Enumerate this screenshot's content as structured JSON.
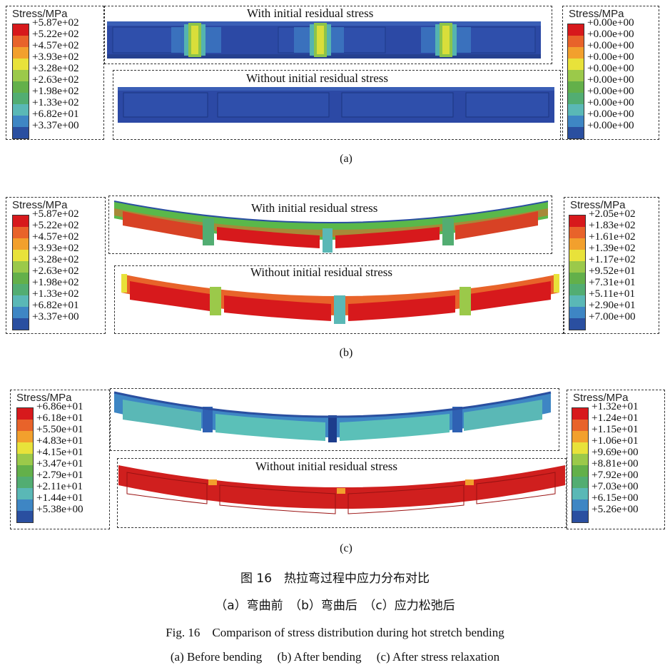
{
  "colors": {
    "scale_top_to_bottom": [
      "#d7191c",
      "#e8632a",
      "#f2a02d",
      "#e8e23a",
      "#9bc94a",
      "#63b04a",
      "#52ad72",
      "#5ab8b6",
      "#3e86c4",
      "#2a4fa0"
    ],
    "beam_blue": "#2c49a5",
    "beam_red": "#d01f1e",
    "beam_teal": "#5bc0b8"
  },
  "panel_a": {
    "label": "(a)",
    "title_top": "With initial residual stress",
    "title_bottom": "Without initial residual stress",
    "legend_left": {
      "title": "Stress/MPa",
      "values": [
        "+5.87e+02",
        "+5.22e+02",
        "+4.57e+02",
        "+3.93e+02",
        "+3.28e+02",
        "+2.63e+02",
        "+1.98e+02",
        "+1.33e+02",
        "+6.82e+01",
        "+3.37e+00"
      ]
    },
    "legend_right": {
      "title": "Stress/MPa",
      "values": [
        "+0.00e+00",
        "+0.00e+00",
        "+0.00e+00",
        "+0.00e+00",
        "+0.00e+00",
        "+0.00e+00",
        "+0.00e+00",
        "+0.00e+00",
        "+0.00e+00",
        "+0.00e+00"
      ]
    }
  },
  "panel_b": {
    "label": "(b)",
    "title_top": "With initial residual stress",
    "title_bottom": "Without initial residual stress",
    "legend_left": {
      "title": "Stress/MPa",
      "values": [
        "+5.87e+02",
        "+5.22e+02",
        "+4.57e+02",
        "+3.93e+02",
        "+3.28e+02",
        "+2.63e+02",
        "+1.98e+02",
        "+1.33e+02",
        "+6.82e+01",
        "+3.37e+00"
      ]
    },
    "legend_right": {
      "title": "Stress/MPa",
      "values": [
        "+2.05e+02",
        "+1.83e+02",
        "+1.61e+02",
        "+1.39e+02",
        "+1.17e+02",
        "+9.52e+01",
        "+7.31e+01",
        "+5.11e+01",
        "+2.90e+01",
        "+7.00e+00"
      ]
    }
  },
  "panel_c": {
    "label": "(c)",
    "title_bottom": "Without initial residual stress",
    "legend_left": {
      "title": "Stress/MPa",
      "values": [
        "+6.86e+01",
        "+6.18e+01",
        "+5.50e+01",
        "+4.83e+01",
        "+4.15e+01",
        "+3.47e+01",
        "+2.79e+01",
        "+2.11e+01",
        "+1.44e+01",
        "+5.38e+00"
      ]
    },
    "legend_right": {
      "title": "Stress/MPa",
      "values": [
        "+1.32e+01",
        "+1.24e+01",
        "+1.15e+01",
        "+1.06e+01",
        "+9.69e+00",
        "+8.81e+00",
        "+7.92e+00",
        "+7.03e+00",
        "+6.15e+00",
        "+5.26e+00"
      ]
    }
  },
  "caption": {
    "cn_title": "图 16　热拉弯过程中应力分布对比",
    "cn_sub": "（a）弯曲前　（b）弯曲后　（c）应力松弛后",
    "en_title": "Fig. 16　Comparison of stress distribution during hot stretch bending",
    "en_sub": "(a)  Before bending　 (b)  After bending　 (c)  After stress relaxation"
  }
}
